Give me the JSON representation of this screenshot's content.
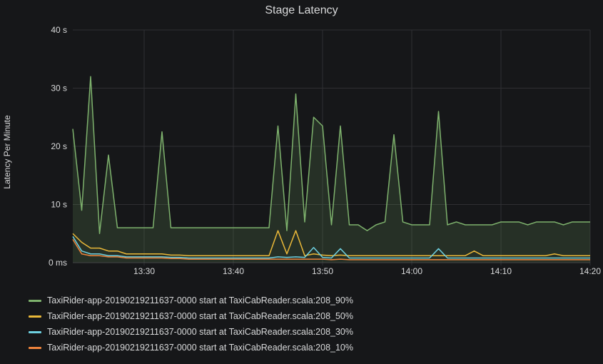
{
  "title": "Stage Latency",
  "ylabel": "Latency Per Minute",
  "background_color": "#161719",
  "text_color": "#d8d9da",
  "grid_color": "#2f2f32",
  "chart": {
    "type": "line-area",
    "y": {
      "min": 0,
      "max": 40,
      "tick_step": 10,
      "unit_top": " s",
      "unit_zero": " ms"
    },
    "x": {
      "ticks": [
        "13:30",
        "13:40",
        "13:50",
        "14:00",
        "14:10",
        "14:20"
      ],
      "range_minutes": 58
    },
    "series": [
      {
        "id": "p90",
        "label": "TaxiRider-app-20190219211637-0000 start at TaxiCabReader.scala:208_90%",
        "color": "#7eb26d",
        "fill_opacity": 0.16,
        "values": [
          23,
          9,
          32,
          5,
          18.5,
          6,
          6,
          6,
          6,
          6,
          22.5,
          6,
          6,
          6,
          6,
          6,
          6,
          6,
          6,
          6,
          6,
          6,
          6,
          23.5,
          5.5,
          29,
          7,
          25,
          23.5,
          6.5,
          23.5,
          6.5,
          6.5,
          5.5,
          6.5,
          7,
          22,
          7,
          6.5,
          6.5,
          6.5,
          26,
          6.5,
          7,
          6.5,
          6.5,
          6.5,
          6.5,
          7,
          7,
          7,
          6.5,
          7,
          7,
          7,
          6.5,
          7,
          7,
          7
        ]
      },
      {
        "id": "p50",
        "label": "TaxiRider-app-20190219211637-0000 start at TaxiCabReader.scala:208_50%",
        "color": "#eab839",
        "fill_opacity": 0.0,
        "values": [
          5,
          3.5,
          2.5,
          2.5,
          2,
          2,
          1.5,
          1.5,
          1.5,
          1.5,
          1.5,
          1.3,
          1.3,
          1.2,
          1.2,
          1.2,
          1.2,
          1.2,
          1.2,
          1.2,
          1.2,
          1.2,
          1.2,
          5.5,
          1.5,
          5.5,
          1.2,
          1.5,
          1.3,
          1.2,
          1.3,
          1.2,
          1.2,
          1.2,
          1.2,
          1.2,
          1.2,
          1.2,
          1.2,
          1.2,
          1.2,
          1.2,
          1.2,
          1.2,
          1.2,
          2,
          1.2,
          1.2,
          1.2,
          1.2,
          1.2,
          1.2,
          1.2,
          1.2,
          1.5,
          1.2,
          1.2,
          1.2,
          1.2
        ]
      },
      {
        "id": "p30",
        "label": "TaxiRider-app-20190219211637-0000 start at TaxiCabReader.scala:208_30%",
        "color": "#6ed0e0",
        "fill_opacity": 0.0,
        "values": [
          4.5,
          2,
          1.5,
          1.5,
          1.2,
          1.2,
          1.0,
          1.0,
          1.0,
          1.0,
          1.0,
          0.9,
          0.9,
          0.8,
          0.8,
          0.8,
          0.8,
          0.8,
          0.8,
          0.8,
          0.8,
          0.8,
          0.8,
          1.0,
          0.9,
          1.0,
          0.9,
          2.6,
          0.9,
          0.8,
          2.4,
          0.8,
          0.8,
          0.8,
          0.8,
          0.8,
          0.8,
          0.8,
          0.8,
          0.8,
          0.8,
          2.4,
          0.8,
          0.8,
          0.8,
          0.8,
          0.8,
          0.8,
          0.8,
          0.8,
          0.8,
          0.8,
          0.8,
          0.8,
          0.8,
          0.8,
          0.8,
          0.8,
          0.8
        ]
      },
      {
        "id": "p10",
        "label": "TaxiRider-app-20190219211637-0000 start at TaxiCabReader.scala:208_10%",
        "color": "#ef843c",
        "fill_opacity": 0.0,
        "values": [
          4,
          1.5,
          1.2,
          1.2,
          1.0,
          1.0,
          0.8,
          0.8,
          0.8,
          0.8,
          0.8,
          0.7,
          0.7,
          0.6,
          0.6,
          0.6,
          0.6,
          0.6,
          0.6,
          0.6,
          0.6,
          0.6,
          0.6,
          0.6,
          0.6,
          0.6,
          0.6,
          0.6,
          0.6,
          0.5,
          0.6,
          0.5,
          0.5,
          0.5,
          0.5,
          0.5,
          0.5,
          0.5,
          0.5,
          0.5,
          0.5,
          0.5,
          0.5,
          0.5,
          0.5,
          0.5,
          0.5,
          0.5,
          0.5,
          0.5,
          0.5,
          0.5,
          0.5,
          0.5,
          0.5,
          0.5,
          0.5,
          0.5,
          0.5
        ]
      }
    ]
  },
  "legend_order": [
    "p90",
    "p50",
    "p30",
    "p10"
  ]
}
